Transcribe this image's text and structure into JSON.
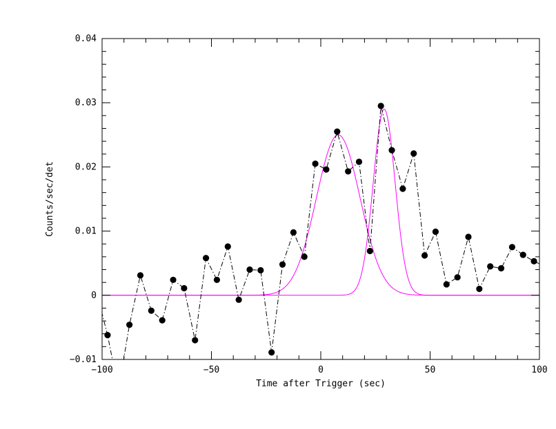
{
  "chart_data": {
    "type": "line",
    "title": "",
    "xlabel": "Time after Trigger (sec)",
    "ylabel": "Counts/sec/det",
    "xlim": [
      -100,
      100
    ],
    "ylim": [
      -0.01,
      0.04
    ],
    "x_ticks": [
      -100,
      -50,
      0,
      50,
      100
    ],
    "x_tick_labels": [
      "−100",
      "−50",
      "0",
      "50",
      "100"
    ],
    "y_ticks": [
      -0.01,
      0,
      0.01,
      0.02,
      0.03,
      0.04
    ],
    "y_tick_labels": [
      "−0.01",
      "0",
      "0.01",
      "0.02",
      "0.03",
      "0.04"
    ],
    "grid": false,
    "series": [
      {
        "style": "dash-dot line with filled circle markers",
        "color": "#000000",
        "x": [
          -102.5,
          -97.5,
          -92.5,
          -87.5,
          -82.5,
          -77.5,
          -72.5,
          -67.5,
          -62.5,
          -57.5,
          -52.5,
          -47.5,
          -42.5,
          -37.5,
          -32.5,
          -27.5,
          -22.5,
          -17.5,
          -12.5,
          -7.5,
          -2.5,
          2.5,
          7.5,
          12.5,
          17.5,
          22.5,
          27.5,
          32.5,
          37.5,
          42.5,
          47.5,
          52.5,
          57.5,
          62.5,
          67.5,
          72.5,
          77.5,
          82.5,
          87.5,
          92.5,
          97.5,
          102.5
        ],
        "y": [
          0.0005,
          -0.0062,
          -0.0148,
          -0.0046,
          0.0031,
          -0.0024,
          -0.0039,
          0.0024,
          0.0011,
          -0.007,
          0.0058,
          0.0024,
          0.0076,
          -0.0007,
          0.004,
          0.0039,
          -0.0089,
          0.0048,
          0.0098,
          0.006,
          0.0205,
          0.0196,
          0.0255,
          0.0193,
          0.0208,
          0.0069,
          0.0295,
          0.0226,
          0.0166,
          0.0221,
          0.0062,
          0.0099,
          0.0017,
          0.0028,
          0.0091,
          0.001,
          0.0045,
          0.0042,
          0.0075,
          0.0063,
          0.0053,
          0.0045
        ],
        "markers_visible_from": 1,
        "markers_visible_to": 40
      },
      {
        "style": "solid gaussian fit",
        "color": "#ff00ff",
        "amplitude": 0.025,
        "center": 8,
        "sigma": 10
      },
      {
        "style": "solid gaussian fit",
        "color": "#ff00ff",
        "amplitude": 0.029,
        "center": 29,
        "sigma": 5
      }
    ]
  }
}
